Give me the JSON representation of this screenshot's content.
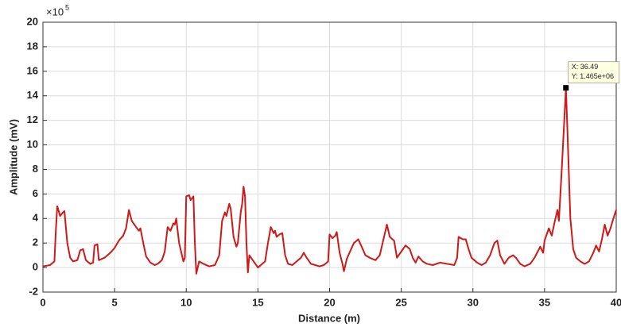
{
  "chart_data": {
    "type": "line",
    "x_label": "Distance (m)",
    "y_label": "Amplitude (mV)",
    "y_exponent_base": "×10",
    "y_exponent_power": "5",
    "xlim": [
      0,
      40
    ],
    "ylim": [
      -2,
      20
    ],
    "xticks": [
      0,
      5,
      10,
      15,
      20,
      25,
      30,
      35,
      40
    ],
    "yticks": [
      -2,
      0,
      2,
      4,
      6,
      8,
      10,
      12,
      14,
      16,
      18,
      20
    ],
    "grid": true,
    "series": [
      {
        "color": "#d01818",
        "x": [
          0,
          0.5,
          0.8,
          0.9,
          1.0,
          1.2,
          1.4,
          1.5,
          1.7,
          1.9,
          2.1,
          2.4,
          2.6,
          2.8,
          3.0,
          3.3,
          3.5,
          3.6,
          3.8,
          3.9,
          4.3,
          4.7,
          5.0,
          5.3,
          5.6,
          5.8,
          6.0,
          6.2,
          6.5,
          6.7,
          6.8,
          7.0,
          7.2,
          7.5,
          7.8,
          8.0,
          8.3,
          8.5,
          8.7,
          8.9,
          9.1,
          9.2,
          9.3,
          9.5,
          9.8,
          9.9,
          10.0,
          10.2,
          10.3,
          10.5,
          10.6,
          10.7,
          10.9,
          11.2,
          11.6,
          12.0,
          12.3,
          12.5,
          12.7,
          12.8,
          13.0,
          13.1,
          13.3,
          13.5,
          13.6,
          13.8,
          13.9,
          14.0,
          14.1,
          14.2,
          14.3,
          14.4,
          14.7,
          15.0,
          15.2,
          15.5,
          15.7,
          15.9,
          16.1,
          16.2,
          16.3,
          16.5,
          16.7,
          16.9,
          17.1,
          17.4,
          17.7,
          18.0,
          18.2,
          18.4,
          18.7,
          19.0,
          19.3,
          19.6,
          19.9,
          20.0,
          20.2,
          20.4,
          20.5,
          20.7,
          20.9,
          21.0,
          21.2,
          21.5,
          21.7,
          22.0,
          22.2,
          22.5,
          22.8,
          23.2,
          23.5,
          23.8,
          24.0,
          24.2,
          24.5,
          24.7,
          25.0,
          25.3,
          25.6,
          25.8,
          26.0,
          26.2,
          26.5,
          26.8,
          27.2,
          27.7,
          28.2,
          28.7,
          28.9,
          29.0,
          29.3,
          29.5,
          29.7,
          29.9,
          30.1,
          30.3,
          30.6,
          30.9,
          31.2,
          31.5,
          31.7,
          31.9,
          32.2,
          32.5,
          32.8,
          33.0,
          33.3,
          33.6,
          34.0,
          34.3,
          34.7,
          34.9,
          35.0,
          35.3,
          35.5,
          35.7,
          35.9,
          36.0,
          36.2,
          36.49,
          36.6,
          36.8,
          37.0,
          37.2,
          37.5,
          37.8,
          38.1,
          38.4,
          38.6,
          38.8,
          39.0,
          39.2,
          39.4,
          39.6,
          39.8,
          40.0
        ],
        "values": [
          0.1,
          0.2,
          0.5,
          3,
          5.0,
          4.2,
          4.5,
          4.6,
          2,
          0.8,
          0.5,
          0.6,
          1.4,
          1.5,
          0.6,
          0.3,
          0.4,
          1.8,
          1.9,
          0.6,
          0.8,
          1.2,
          1.6,
          2.2,
          2.6,
          3.2,
          4.7,
          3.8,
          3.3,
          3.0,
          3.2,
          2.0,
          0.9,
          0.4,
          0.2,
          0.3,
          0.6,
          1.3,
          3.3,
          3.0,
          3.6,
          3.5,
          4.0,
          2.0,
          0.5,
          0.8,
          5.8,
          5.9,
          5.5,
          5.8,
          2.0,
          -0.5,
          0.5,
          0.3,
          0.1,
          0.2,
          1.0,
          3.8,
          4.5,
          4.2,
          5.2,
          4.8,
          2.5,
          1.7,
          2.0,
          4.5,
          5.2,
          6.6,
          5.8,
          2.0,
          -0.4,
          1.0,
          0.5,
          0.0,
          0.2,
          0.5,
          2.0,
          3.3,
          2.8,
          3.0,
          2.5,
          2.7,
          2.8,
          1.0,
          0.3,
          0.2,
          0.5,
          0.8,
          1.2,
          0.8,
          0.3,
          0.2,
          0.1,
          0.2,
          0.5,
          2.7,
          2.4,
          2.6,
          2.9,
          1.2,
          0.3,
          -0.3,
          0.7,
          1.5,
          2.0,
          2.3,
          1.8,
          1.0,
          0.8,
          0.6,
          1.0,
          2.5,
          3.5,
          2.5,
          2.2,
          0.8,
          1.3,
          1.8,
          1.5,
          0.8,
          0.4,
          0.9,
          0.5,
          0.3,
          0.2,
          0.4,
          0.3,
          0.2,
          0.8,
          2.5,
          2.3,
          2.3,
          1.5,
          0.8,
          0.6,
          0.4,
          0.2,
          0.4,
          1.0,
          2.0,
          2.2,
          1.0,
          0.3,
          0.8,
          1.0,
          0.8,
          0.3,
          0.1,
          0.3,
          0.8,
          1.7,
          1.2,
          2.2,
          3.2,
          2.6,
          3.7,
          4.7,
          3.8,
          8.0,
          14.65,
          11.0,
          4.0,
          1.5,
          0.8,
          0.5,
          0.3,
          0.5,
          1.2,
          1.8,
          1.3,
          2.3,
          3.5,
          2.6,
          3.2,
          4.0,
          4.7
        ]
      }
    ],
    "annotation": {
      "x": 36.49,
      "y": 14.65,
      "label_x": "X: 36.49",
      "label_y": "Y: 1.465e+06"
    }
  }
}
